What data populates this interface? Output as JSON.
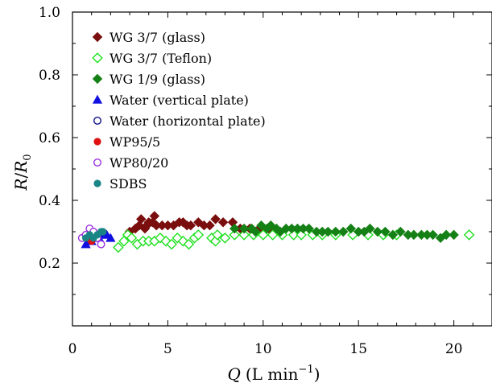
{
  "chart_data": {
    "type": "scatter",
    "title": "",
    "xlabel": {
      "symbol": "Q",
      "unit": "(L min",
      "unit_exp": "−1",
      "unit_close": ")"
    },
    "ylabel": {
      "symbol": "R",
      "slash": "/",
      "symbol2": "R",
      "subscript": "0"
    },
    "xlim": [
      0,
      22
    ],
    "ylim": [
      0,
      1.0
    ],
    "x_ticks": [
      0,
      5,
      10,
      15,
      20
    ],
    "x_tick_labels": [
      "0",
      "5",
      "10",
      "15",
      "20"
    ],
    "y_ticks": [
      0.2,
      0.4,
      0.6,
      0.8,
      1.0
    ],
    "y_tick_labels": [
      "0.2",
      "0.4",
      "0.6",
      "0.8",
      "1.0"
    ],
    "grid": false,
    "legend_position": "top-left",
    "series": [
      {
        "name": "WG 3/7 (glass)",
        "marker": "diamond",
        "filled": true,
        "color": "#7a0e0e",
        "points": [
          [
            3.0,
            0.3
          ],
          [
            3.3,
            0.31
          ],
          [
            3.5,
            0.32
          ],
          [
            3.6,
            0.34
          ],
          [
            3.8,
            0.31
          ],
          [
            3.9,
            0.32
          ],
          [
            4.0,
            0.33
          ],
          [
            4.2,
            0.33
          ],
          [
            4.3,
            0.35
          ],
          [
            4.4,
            0.32
          ],
          [
            4.7,
            0.32
          ],
          [
            5.0,
            0.32
          ],
          [
            5.3,
            0.32
          ],
          [
            5.6,
            0.33
          ],
          [
            5.8,
            0.33
          ],
          [
            6.0,
            0.32
          ],
          [
            6.2,
            0.32
          ],
          [
            6.6,
            0.33
          ],
          [
            6.9,
            0.32
          ],
          [
            7.2,
            0.32
          ],
          [
            7.5,
            0.34
          ],
          [
            7.9,
            0.33
          ],
          [
            8.4,
            0.33
          ],
          [
            8.8,
            0.31
          ],
          [
            9.3,
            0.31
          ],
          [
            9.8,
            0.31
          ],
          [
            10.3,
            0.31
          ]
        ]
      },
      {
        "name": "WG 3/7 (Teflon)",
        "marker": "diamond",
        "filled": false,
        "color": "#1fe01f",
        "points": [
          [
            2.4,
            0.25
          ],
          [
            2.7,
            0.27
          ],
          [
            2.9,
            0.29
          ],
          [
            3.1,
            0.28
          ],
          [
            3.4,
            0.26
          ],
          [
            3.7,
            0.27
          ],
          [
            4.0,
            0.27
          ],
          [
            4.3,
            0.27
          ],
          [
            4.6,
            0.28
          ],
          [
            4.9,
            0.27
          ],
          [
            5.2,
            0.26
          ],
          [
            5.5,
            0.28
          ],
          [
            5.8,
            0.27
          ],
          [
            6.1,
            0.26
          ],
          [
            6.4,
            0.28
          ],
          [
            6.6,
            0.29
          ],
          [
            7.3,
            0.28
          ],
          [
            7.5,
            0.27
          ],
          [
            7.6,
            0.29
          ],
          [
            8.0,
            0.28
          ],
          [
            8.5,
            0.29
          ],
          [
            9.0,
            0.29
          ],
          [
            9.5,
            0.29
          ],
          [
            10.0,
            0.29
          ],
          [
            10.5,
            0.29
          ],
          [
            11.0,
            0.29
          ],
          [
            11.6,
            0.29
          ],
          [
            12.0,
            0.29
          ],
          [
            12.6,
            0.29
          ],
          [
            13.1,
            0.29
          ],
          [
            13.8,
            0.29
          ],
          [
            14.7,
            0.29
          ],
          [
            15.5,
            0.29
          ],
          [
            16.3,
            0.29
          ],
          [
            17.0,
            0.29
          ],
          [
            20.8,
            0.29
          ]
        ]
      },
      {
        "name": "WG 1/9 (glass)",
        "marker": "diamond",
        "filled": true,
        "color": "#158015",
        "points": [
          [
            8.5,
            0.31
          ],
          [
            9.0,
            0.31
          ],
          [
            9.4,
            0.31
          ],
          [
            9.6,
            0.3
          ],
          [
            9.9,
            0.32
          ],
          [
            10.2,
            0.31
          ],
          [
            10.4,
            0.32
          ],
          [
            10.7,
            0.31
          ],
          [
            10.9,
            0.3
          ],
          [
            11.2,
            0.31
          ],
          [
            11.5,
            0.31
          ],
          [
            11.8,
            0.31
          ],
          [
            12.1,
            0.31
          ],
          [
            12.4,
            0.31
          ],
          [
            12.8,
            0.3
          ],
          [
            13.1,
            0.3
          ],
          [
            13.4,
            0.3
          ],
          [
            13.8,
            0.3
          ],
          [
            14.2,
            0.3
          ],
          [
            14.6,
            0.31
          ],
          [
            15.0,
            0.3
          ],
          [
            15.3,
            0.3
          ],
          [
            15.6,
            0.31
          ],
          [
            16.0,
            0.3
          ],
          [
            16.4,
            0.3
          ],
          [
            16.8,
            0.29
          ],
          [
            17.2,
            0.3
          ],
          [
            17.6,
            0.29
          ],
          [
            17.9,
            0.29
          ],
          [
            18.3,
            0.29
          ],
          [
            18.6,
            0.29
          ],
          [
            18.9,
            0.29
          ],
          [
            19.3,
            0.28
          ],
          [
            19.6,
            0.29
          ],
          [
            20.0,
            0.29
          ]
        ]
      },
      {
        "name": "Water (vertical plate)",
        "marker": "triangle",
        "filled": true,
        "color": "#1010e0",
        "points": [
          [
            0.7,
            0.26
          ],
          [
            0.9,
            0.27
          ],
          [
            1.0,
            0.27
          ],
          [
            1.2,
            0.28
          ],
          [
            1.4,
            0.28
          ],
          [
            1.6,
            0.29
          ],
          [
            1.8,
            0.29
          ],
          [
            2.0,
            0.28
          ]
        ]
      },
      {
        "name": "Water (horizontal plate)",
        "marker": "circle",
        "filled": false,
        "color": "#10108a",
        "points": [
          [
            0.9,
            0.28
          ],
          [
            1.1,
            0.28
          ]
        ]
      },
      {
        "name": "WP95/5",
        "marker": "circle",
        "filled": true,
        "color": "#e01010",
        "points": [
          [
            0.8,
            0.28
          ],
          [
            1.0,
            0.27
          ]
        ]
      },
      {
        "name": "WP80/20",
        "marker": "circle",
        "filled": false,
        "color": "#9b30e0",
        "points": [
          [
            0.5,
            0.28
          ],
          [
            0.7,
            0.29
          ],
          [
            0.9,
            0.31
          ],
          [
            1.1,
            0.3
          ],
          [
            1.3,
            0.28
          ],
          [
            1.5,
            0.26
          ]
        ]
      },
      {
        "name": "SDBS",
        "marker": "circle",
        "filled": true,
        "color": "#1a8585",
        "points": [
          [
            0.7,
            0.28
          ],
          [
            0.9,
            0.29
          ],
          [
            1.1,
            0.28
          ],
          [
            1.3,
            0.29
          ],
          [
            1.5,
            0.3
          ],
          [
            1.6,
            0.3
          ]
        ]
      }
    ]
  }
}
